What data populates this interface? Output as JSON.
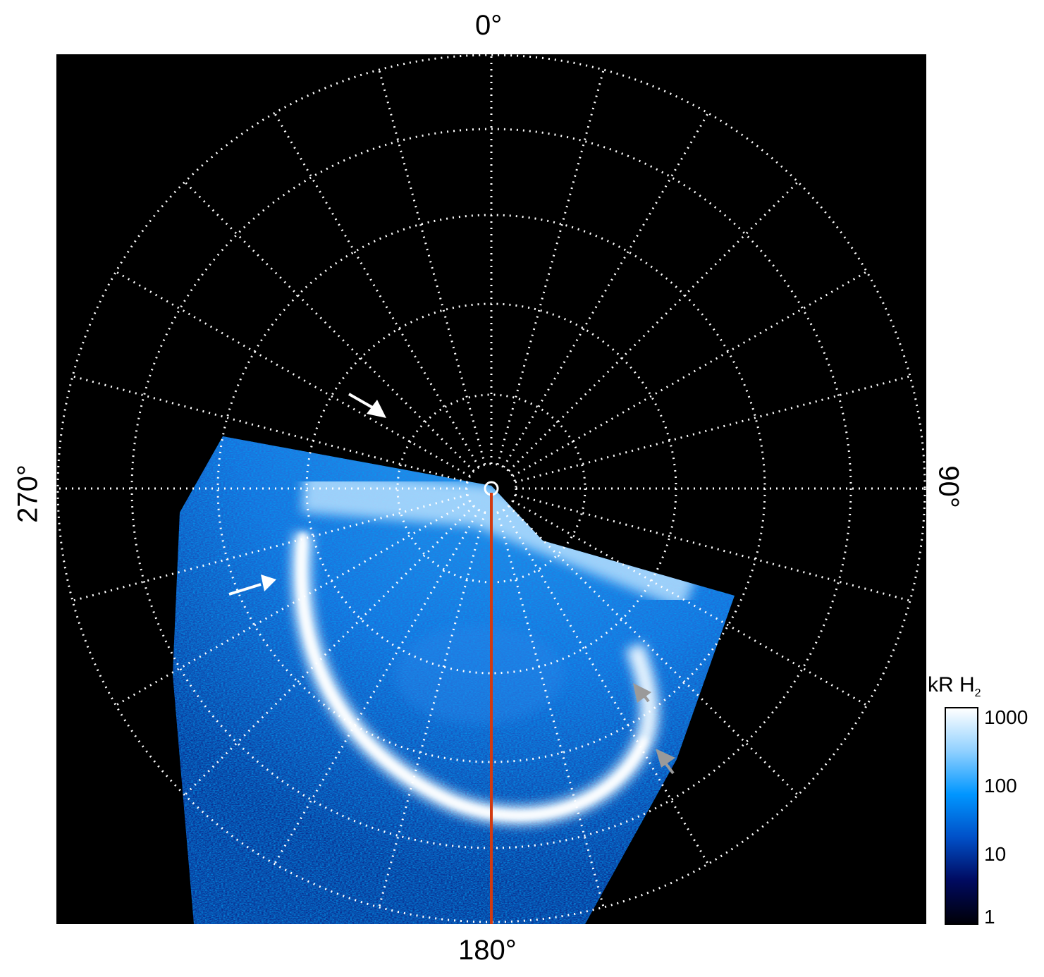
{
  "axis_labels": {
    "top": "0°",
    "right": "90°",
    "bottom": "180°",
    "left": "270°"
  },
  "colorbar": {
    "title": "kR H",
    "title_subscript": "2",
    "scale": "log",
    "range": [
      1,
      1000
    ],
    "ticks": [
      "1000",
      "100",
      "10",
      "1"
    ],
    "colors": [
      "#000008",
      "#000a60",
      "#0050c8",
      "#0096ff",
      "#8fd0ff",
      "#ffffff"
    ]
  },
  "grid": {
    "meridian_step_deg": 15,
    "style": "dotted",
    "color": "#ffffff"
  },
  "reference_line_color": "#d23a10",
  "arrows": [
    {
      "color": "#ffffff"
    },
    {
      "color": "#ffffff"
    },
    {
      "color": "#9a9a9a"
    },
    {
      "color": "#9a9a9a"
    }
  ]
}
